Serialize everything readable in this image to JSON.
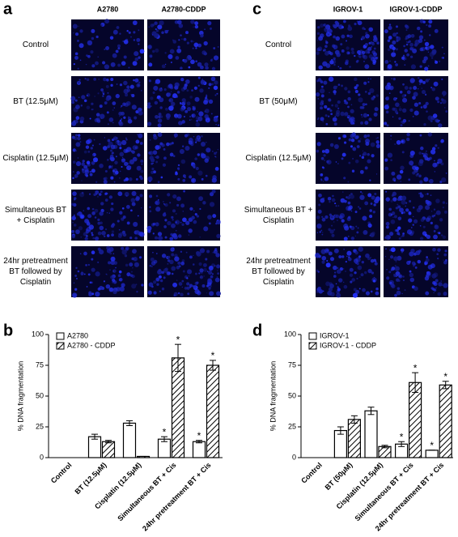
{
  "panels": [
    {
      "letter": "a",
      "columns": [
        "A2780",
        "A2780-CDDP"
      ],
      "rows": [
        "Control",
        "BT (12.5μM)",
        "Cisplatin (12.5μM)",
        "Simultaneous BT + Cisplatin",
        "24hr pretreatment BT followed by Cisplatin"
      ]
    },
    {
      "letter": "c",
      "columns": [
        "IGROV-1",
        "IGROV-1-CDDP"
      ],
      "rows": [
        "Control",
        "BT (50μM)",
        "Cisplatin (12.5μM)",
        "Simultaneous BT + Cisplatin",
        "24hr pretreatment BT followed by Cisplatin"
      ]
    }
  ],
  "chart_data": [
    {
      "type": "bar",
      "letter": "b",
      "y_label": "% DNA fragmentation",
      "categories": [
        "Control",
        "BT (12.5μM)",
        "Cisplatin (12.5μM)",
        "Simultaneous BT + Cis",
        "24hr pretreatment BT + Cis"
      ],
      "ylim": [
        0,
        100
      ],
      "yticks": [
        0,
        25,
        50,
        75,
        100
      ],
      "legend": "top-left",
      "series": [
        {
          "name": "A2780",
          "color": "#ffffff",
          "pattern": "solid",
          "values": [
            0,
            17,
            28,
            15,
            13
          ],
          "errors": [
            0,
            2,
            2,
            2,
            1
          ],
          "annotations": [
            null,
            null,
            null,
            "*",
            "*"
          ]
        },
        {
          "name": "A2780 - CDDP",
          "color": "#ffffff",
          "pattern": "hatch",
          "values": [
            0,
            13,
            1,
            81,
            75
          ],
          "errors": [
            0,
            1,
            0,
            11,
            4
          ],
          "annotations": [
            null,
            null,
            null,
            "*",
            "*"
          ]
        }
      ]
    },
    {
      "type": "bar",
      "letter": "d",
      "y_label": "% DNA fragmentation",
      "categories": [
        "Control",
        "BT (50μM)",
        "Cisplatin (12.5μM)",
        "Simultaneous BT + Cis",
        "24hr pretreatment BT + Cis"
      ],
      "ylim": [
        0,
        100
      ],
      "yticks": [
        0,
        25,
        50,
        75,
        100
      ],
      "legend": "top-left",
      "series": [
        {
          "name": "IGROV-1",
          "color": "#ffffff",
          "pattern": "solid",
          "values": [
            0,
            22,
            38,
            11,
            6
          ],
          "errors": [
            0,
            3,
            3,
            2,
            0
          ],
          "annotations": [
            null,
            null,
            null,
            "*",
            "*"
          ]
        },
        {
          "name": "IGROV-1 - CDDP",
          "color": "#ffffff",
          "pattern": "hatch",
          "values": [
            0,
            31,
            9,
            61,
            59
          ],
          "errors": [
            0,
            3,
            1,
            8,
            3
          ],
          "annotations": [
            null,
            null,
            null,
            "*",
            "*"
          ]
        }
      ]
    }
  ]
}
